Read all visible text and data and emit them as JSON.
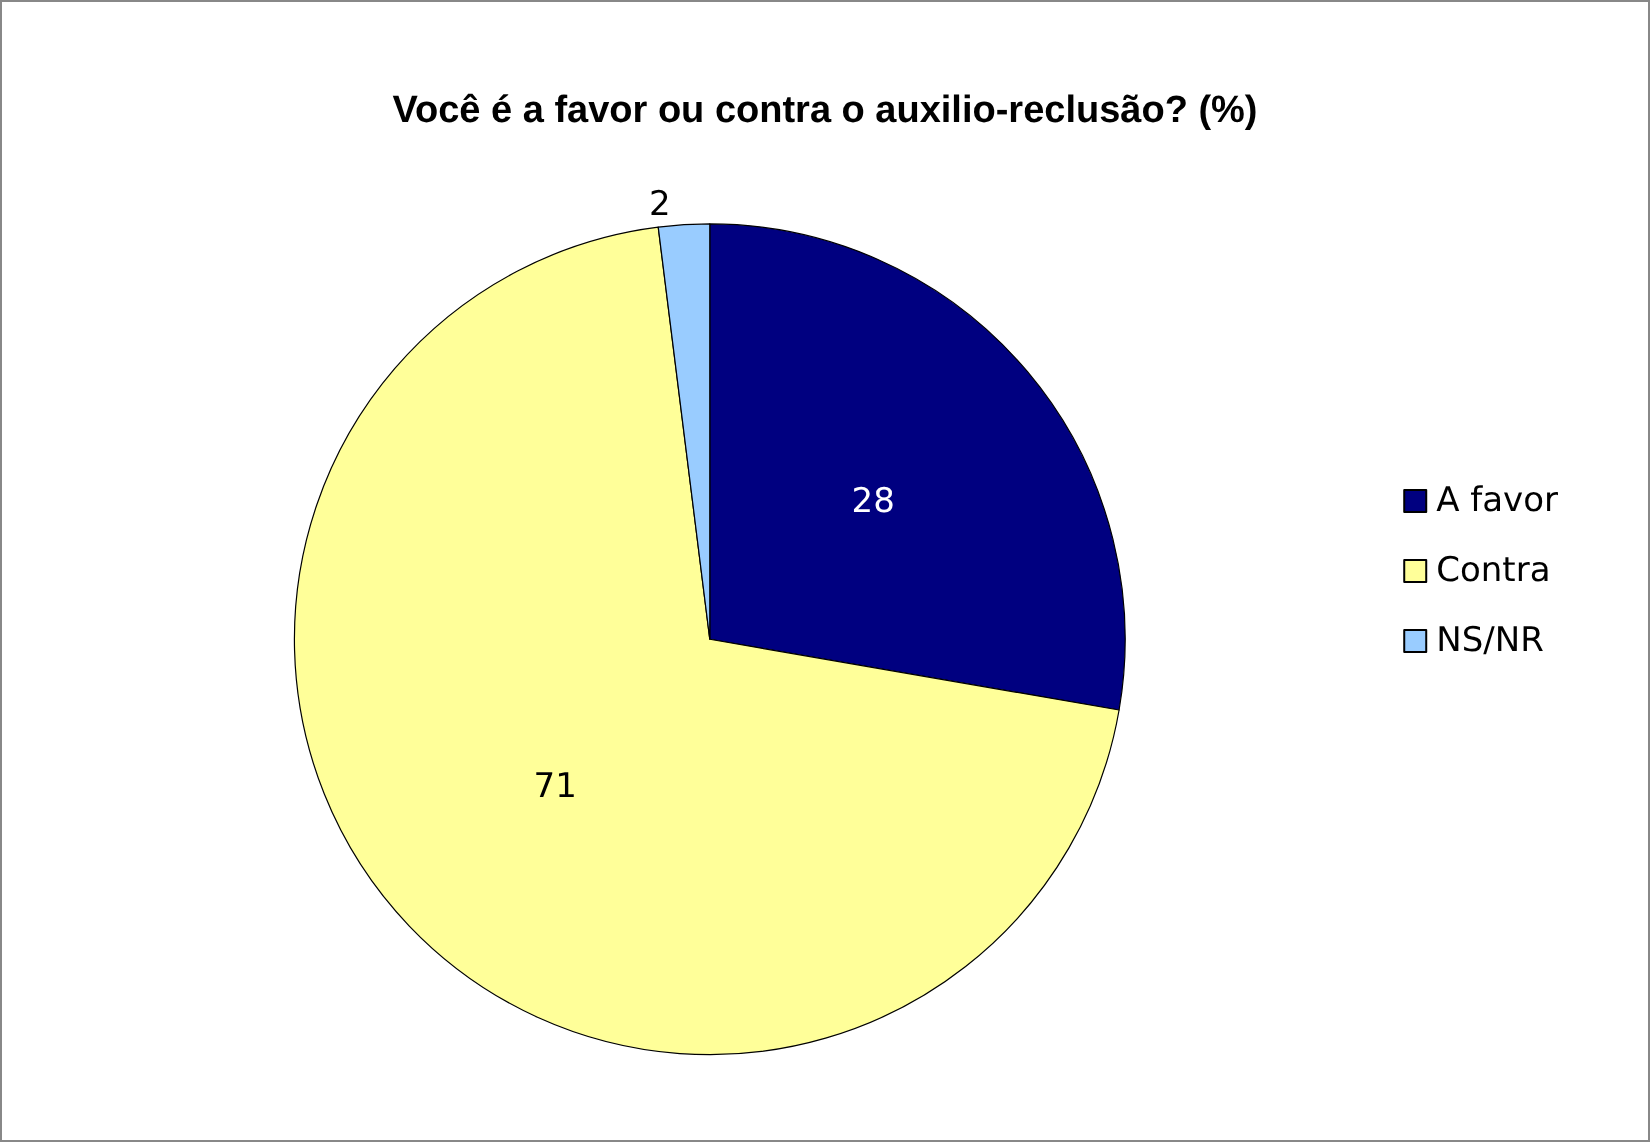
{
  "chart_data": {
    "type": "pie",
    "title": "Você é a favor ou contra o auxilio-reclusão? (%)",
    "categories": [
      "A favor",
      "Contra",
      "NS/NR"
    ],
    "values": [
      28,
      71,
      2
    ],
    "colors": [
      "#000080",
      "#ffff99",
      "#99ccff"
    ],
    "data_labels": true,
    "legend": "right"
  }
}
